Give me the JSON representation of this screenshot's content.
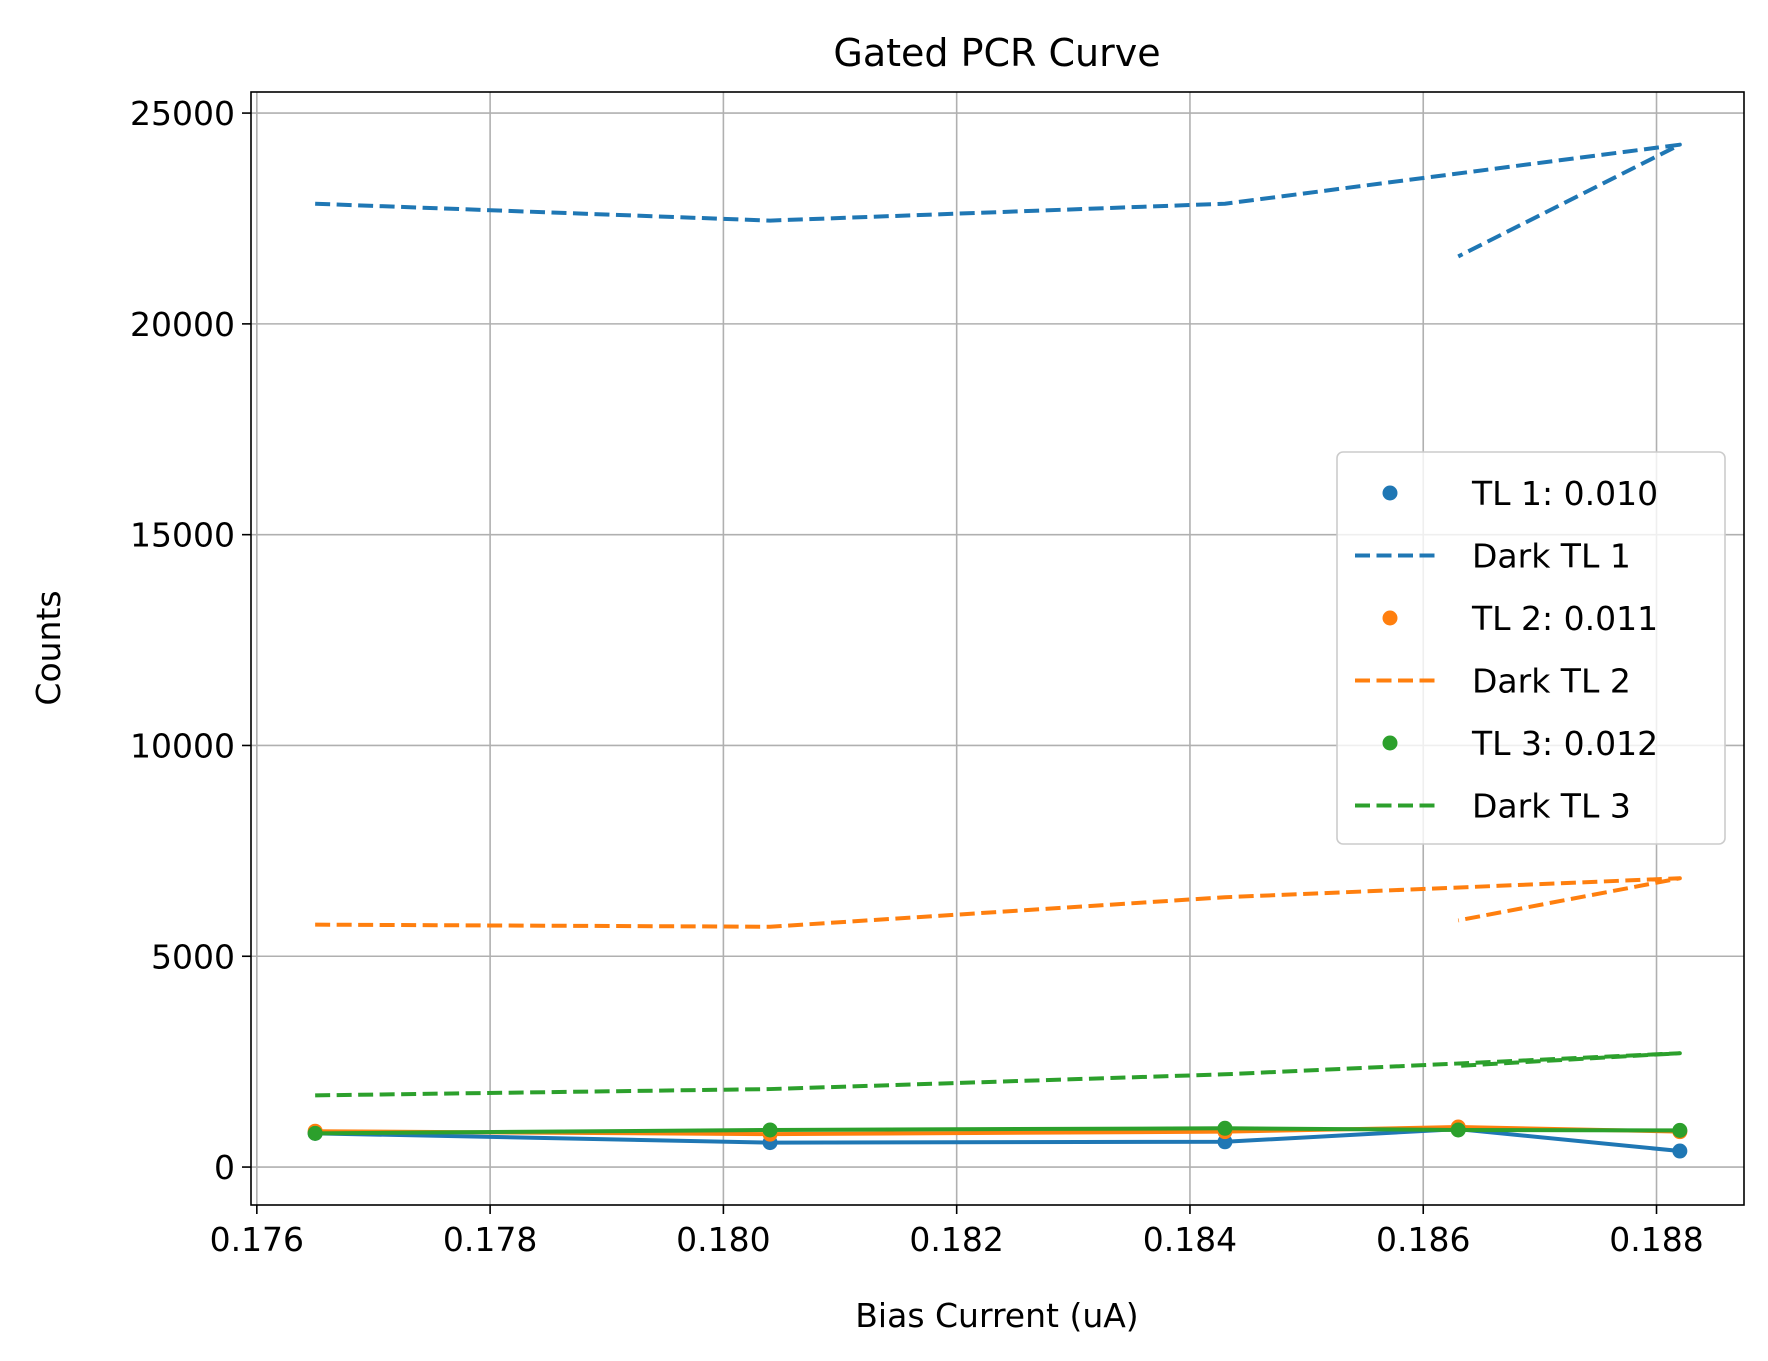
{
  "chart_data": {
    "type": "line",
    "title": "Gated PCR Curve",
    "xlabel": "Bias Current (uA)",
    "ylabel": "Counts",
    "xlim": [
      0.17595,
      0.18875
    ],
    "ylim": [
      -900,
      25500
    ],
    "xticks": [
      0.176,
      0.178,
      0.18,
      0.182,
      0.184,
      0.186,
      0.188
    ],
    "xtick_labels": [
      "0.176",
      "0.178",
      "0.180",
      "0.182",
      "0.184",
      "0.186",
      "0.188"
    ],
    "yticks": [
      0,
      5000,
      10000,
      15000,
      20000,
      25000
    ],
    "ytick_labels": [
      "0",
      "5000",
      "10000",
      "15000",
      "20000",
      "25000"
    ],
    "grid": true,
    "legend_position": "center-right",
    "legend": [
      "TL 1: 0.010",
      "Dark TL 1",
      "TL 2: 0.011",
      "Dark TL 2",
      "TL 3: 0.012",
      "Dark TL 3"
    ],
    "series": [
      {
        "name": "TL 1: 0.010",
        "color": "#1f77b4",
        "style": "solid-with-markers",
        "x": [
          0.1765,
          0.1804,
          0.1843,
          0.1863,
          0.1882
        ],
        "y": [
          800,
          580,
          600,
          900,
          380
        ]
      },
      {
        "name": "Dark TL 1",
        "color": "#1f77b4",
        "style": "dashed",
        "x": [
          0.1765,
          0.1804,
          0.1843,
          0.1882,
          0.1863
        ],
        "y": [
          22850,
          22450,
          22850,
          24250,
          21600
        ]
      },
      {
        "name": "TL 2: 0.011",
        "color": "#ff7f0e",
        "style": "solid-with-markers",
        "x": [
          0.1765,
          0.1804,
          0.1843,
          0.1863,
          0.1882
        ],
        "y": [
          850,
          780,
          840,
          950,
          840
        ]
      },
      {
        "name": "Dark TL 2",
        "color": "#ff7f0e",
        "style": "dashed",
        "x": [
          0.1765,
          0.1804,
          0.1843,
          0.1882,
          0.1863
        ],
        "y": [
          5750,
          5700,
          6400,
          6850,
          5850
        ]
      },
      {
        "name": "TL 3: 0.012",
        "color": "#2ca02c",
        "style": "solid-with-markers",
        "x": [
          0.1765,
          0.1804,
          0.1843,
          0.1863,
          0.1882
        ],
        "y": [
          800,
          880,
          920,
          880,
          870
        ]
      },
      {
        "name": "Dark TL 3",
        "color": "#2ca02c",
        "style": "dashed",
        "x": [
          0.1765,
          0.1804,
          0.1843,
          0.1882,
          0.1863
        ],
        "y": [
          1700,
          1850,
          2200,
          2700,
          2400
        ]
      }
    ]
  }
}
